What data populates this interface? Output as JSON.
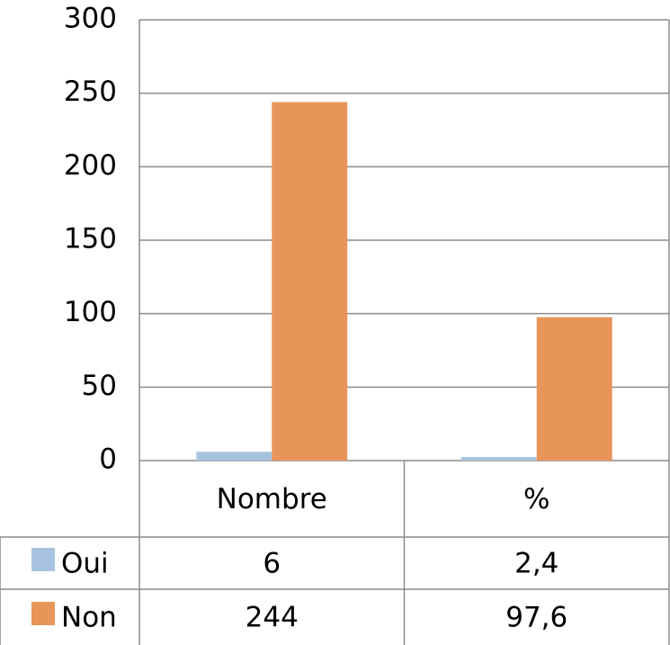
{
  "chart_data": {
    "type": "bar",
    "categories": [
      "Nombre",
      "%"
    ],
    "series": [
      {
        "name": "Oui",
        "color": "#a8c3df",
        "values": [
          6,
          2.4
        ],
        "value_labels": [
          "6",
          "2,4"
        ]
      },
      {
        "name": "Non",
        "color": "#e8955a",
        "values": [
          244,
          97.6
        ],
        "value_labels": [
          "244",
          "97,6"
        ]
      }
    ],
    "ylim": [
      0,
      300
    ],
    "yticks": [
      0,
      50,
      100,
      150,
      200,
      250,
      300
    ],
    "grid": true,
    "legend": "table"
  }
}
